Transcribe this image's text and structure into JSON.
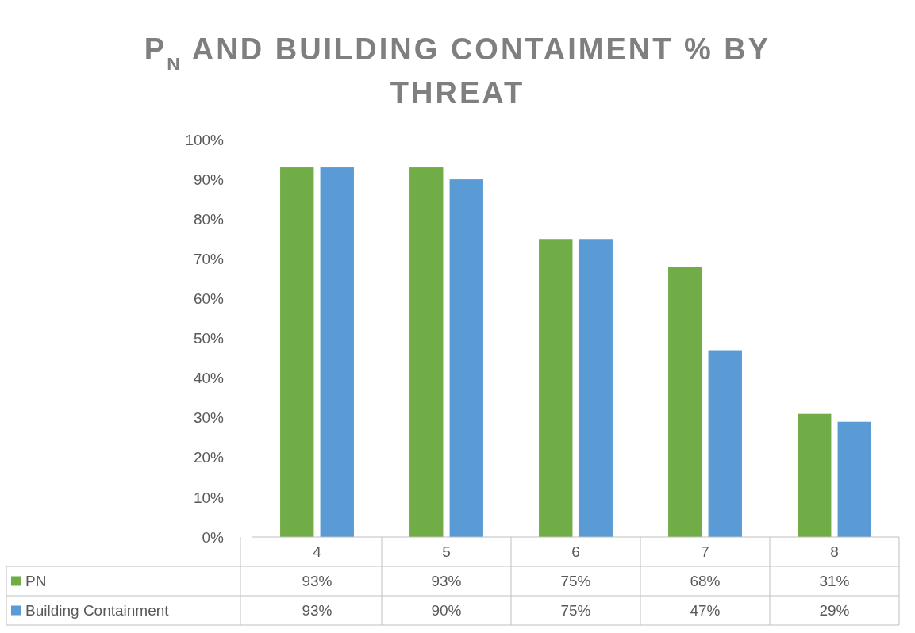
{
  "chart_data": {
    "type": "bar",
    "title": "P$_{N}$ AND BUILDING CONTAIMENT % BY THREAT",
    "categories": [
      "4",
      "5",
      "6",
      "7",
      "8"
    ],
    "series": [
      {
        "name": "PN",
        "color": "#70ad47",
        "values": [
          93,
          93,
          75,
          68,
          31
        ],
        "value_labels": [
          "93%",
          "93%",
          "75%",
          "68%",
          "31%"
        ]
      },
      {
        "name": "Building Containment",
        "color": "#5b9bd5",
        "values": [
          93,
          90,
          75,
          47,
          29
        ],
        "value_labels": [
          "93%",
          "90%",
          "75%",
          "47%",
          "29%"
        ]
      }
    ],
    "ylim": [
      0,
      100
    ],
    "yticks": [
      {
        "value": 0,
        "label": "0%"
      },
      {
        "value": 10,
        "label": "10%"
      },
      {
        "value": 20,
        "label": "20%"
      },
      {
        "value": 30,
        "label": "30%"
      },
      {
        "value": 40,
        "label": "40%"
      },
      {
        "value": 50,
        "label": "50%"
      },
      {
        "value": 60,
        "label": "60%"
      },
      {
        "value": 70,
        "label": "70%"
      },
      {
        "value": 80,
        "label": "80%"
      },
      {
        "value": 90,
        "label": "90%"
      },
      {
        "value": 100,
        "label": "100%"
      }
    ],
    "grid": false,
    "legend": "bottom"
  }
}
